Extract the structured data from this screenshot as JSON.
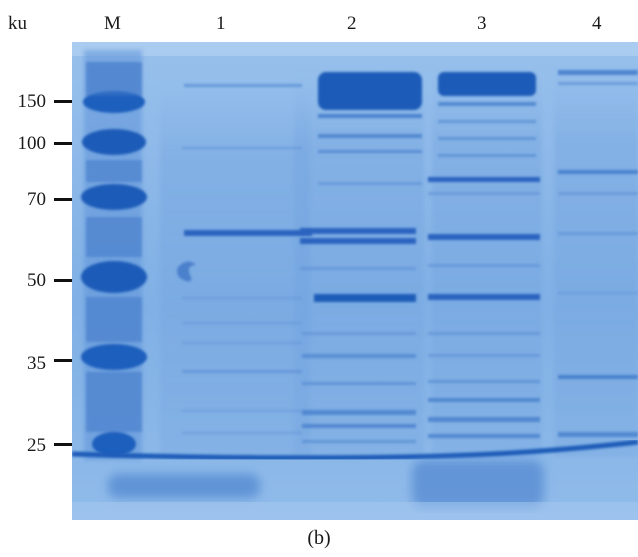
{
  "header": {
    "unit_label": "ku",
    "lane_labels": [
      "M",
      "1",
      "2",
      "3",
      "4"
    ]
  },
  "markers": [
    {
      "label": "150",
      "kda": 150
    },
    {
      "label": "100",
      "kda": 100
    },
    {
      "label": "70",
      "kda": 70
    },
    {
      "label": "50",
      "kda": 50
    },
    {
      "label": "35",
      "kda": 35
    },
    {
      "label": "25",
      "kda": 25
    }
  ],
  "caption": "(b)",
  "colors": {
    "gel_background": "#86b4e6",
    "gel_light": "#a9cbf0",
    "band_dark": "#1c5bb8",
    "band_medium": "#3c77c8",
    "band_faint": "#6c9ad8",
    "text": "#1a1a1a"
  }
}
